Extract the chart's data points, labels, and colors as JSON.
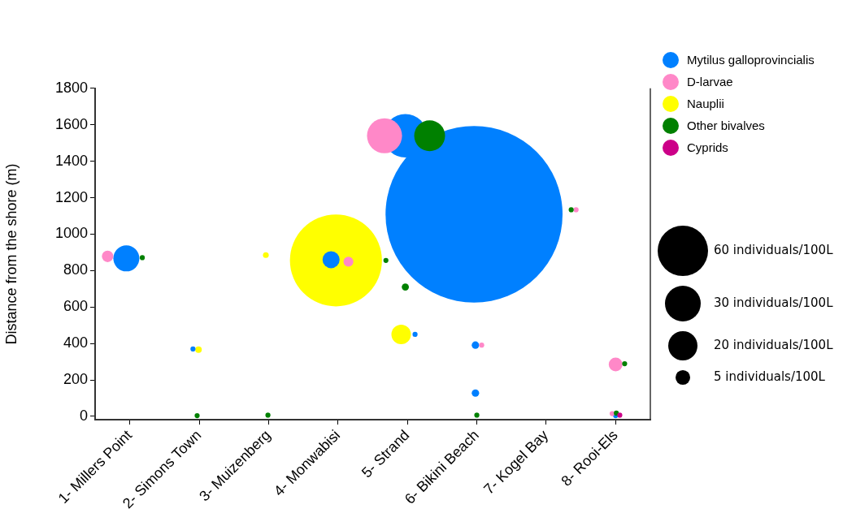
{
  "chart_data": {
    "type": "bubble",
    "ylabel": "Distance from the shore (m)",
    "xlim": [
      0.5,
      8.5
    ],
    "xticks": [
      {
        "value": 1,
        "label": "1- Millers Point"
      },
      {
        "value": 2,
        "label": "2- Simons Town"
      },
      {
        "value": 3,
        "label": "3- Muizenberg"
      },
      {
        "value": 4,
        "label": "4- Monwabisi"
      },
      {
        "value": 5,
        "label": "5- Strand"
      },
      {
        "value": 6,
        "label": "6- Bikini Beach"
      },
      {
        "value": 7,
        "label": "7- Kogel Bay"
      },
      {
        "value": 8,
        "label": "8- Rooi-Els"
      }
    ],
    "ylim": [
      -18,
      1800
    ],
    "yticks": [
      0,
      200,
      400,
      600,
      800,
      1000,
      1200,
      1400,
      1600,
      1800
    ],
    "legend": "top right",
    "size_legend": [
      {
        "value": 60,
        "label": "60 individuals/100L"
      },
      {
        "value": 30,
        "label": "30 individuals/100L"
      },
      {
        "value": 20,
        "label": "20 individuals/100L"
      },
      {
        "value": 5,
        "label": "5 individuals/100L"
      }
    ],
    "series": [
      {
        "name": "Mytilus galloprovincialis",
        "color": "#0080ff",
        "x": [
          0.95,
          1.91,
          3.9,
          4.97,
          5.11,
          5.96,
          5.98,
          5.98,
          8.0
        ],
        "values": [
          867,
          370,
          860,
          1540,
          450,
          1109,
          391,
          128,
          4
        ],
        "sizes": [
          16,
          0.6,
          6.9,
          45,
          0.6,
          740,
          1.3,
          1.3,
          0.6
        ]
      },
      {
        "name": "D-larvae",
        "color": "#ff88c8",
        "x": [
          0.68,
          4.15,
          4.67,
          6.07,
          7.43,
          8.0,
          7.95
        ],
        "values": [
          878,
          849,
          1540,
          391,
          1134,
          285,
          15
        ],
        "sizes": [
          3.1,
          2.3,
          29,
          0.6,
          0.6,
          4.5,
          0.6
        ]
      },
      {
        "name": "Nauplii",
        "color": "#ffff00",
        "x": [
          1.99,
          2.96,
          3.97,
          4.91
        ],
        "values": [
          366,
          885,
          856,
          450
        ],
        "sizes": [
          1,
          0.8,
          200,
          9
        ]
      },
      {
        "name": "Other bivalves",
        "color": "#008000",
        "x": [
          1.18,
          1.97,
          2.99,
          4.69,
          4.97,
          5.32,
          6.0,
          7.36,
          8.13,
          8.01
        ],
        "values": [
          871,
          4,
          7,
          856,
          710,
          1540,
          7,
          1134,
          289,
          18
        ],
        "sizes": [
          0.6,
          0.6,
          0.6,
          0.6,
          1.2,
          22.5,
          0.6,
          0.6,
          0.6,
          0.6
        ]
      },
      {
        "name": "Cyprids",
        "color": "#cc0088",
        "x": [
          8.06
        ],
        "values": [
          7
        ],
        "sizes": [
          0.6
        ]
      }
    ]
  }
}
